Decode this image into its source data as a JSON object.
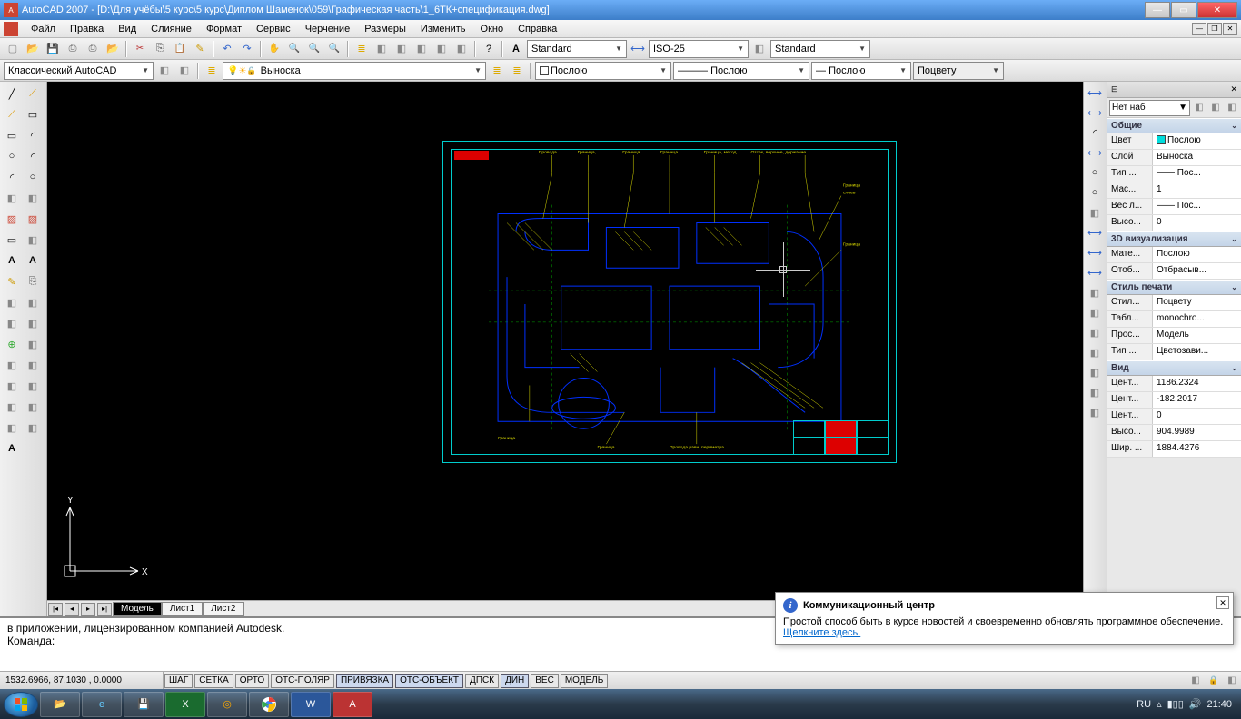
{
  "title": "AutoCAD 2007 - [D:\\Для учёбы\\5 курс\\5 курс\\Диплом Шаменок\\059\\Графическая часть\\1_6ТК+спецификация.dwg]",
  "menu": [
    "Файл",
    "Правка",
    "Вид",
    "Слияние",
    "Формат",
    "Сервис",
    "Черчение",
    "Размеры",
    "Изменить",
    "Окно",
    "Справка"
  ],
  "toolbar2": {
    "workspace": "Классический AutoCAD",
    "layer": "Выноска",
    "color": "Послою",
    "linetype": "Послою",
    "lineweight": "Послою",
    "plotstyle": "Поцвету",
    "textstyle": "Standard",
    "dimstyle": "ISO-25",
    "tablestyle": "Standard"
  },
  "tabs": {
    "active": "Модель",
    "others": [
      "Лист1",
      "Лист2"
    ]
  },
  "commandline": {
    "line1": "в приложении, лицензированном компанией Autodesk.",
    "prompt": "Команда:"
  },
  "status": {
    "coords": "1532.6966, 87.1030 , 0.0000",
    "toggles": [
      "ШАГ",
      "СЕТКА",
      "ОРТО",
      "ОТС-ПОЛЯР",
      "ПРИВЯЗКА",
      "ОТС-ОБЪЕКТ",
      "ДПСК",
      "ДИН",
      "ВЕС",
      "МОДЕЛЬ"
    ],
    "active_toggles": [
      4,
      5,
      7
    ]
  },
  "properties": {
    "selector": "Нет наб",
    "sections": [
      {
        "title": "Общие",
        "rows": [
          {
            "k": "Цвет",
            "v": "Послою",
            "color": "#00dddd"
          },
          {
            "k": "Слой",
            "v": "Выноска"
          },
          {
            "k": "Тип ...",
            "v": "—— Пос..."
          },
          {
            "k": "Мас...",
            "v": "1"
          },
          {
            "k": "Вес л...",
            "v": "—— Пос..."
          },
          {
            "k": "Высо...",
            "v": "0"
          }
        ]
      },
      {
        "title": "3D визуализация",
        "rows": [
          {
            "k": "Мате...",
            "v": "Послою"
          },
          {
            "k": "Отоб...",
            "v": "Отбрасыв..."
          }
        ]
      },
      {
        "title": "Стиль печати",
        "rows": [
          {
            "k": "Стил...",
            "v": "Поцвету"
          },
          {
            "k": "Табл...",
            "v": "monochro..."
          },
          {
            "k": "Прос...",
            "v": "Модель"
          },
          {
            "k": "Тип ...",
            "v": "Цветозави..."
          }
        ]
      },
      {
        "title": "Вид",
        "rows": [
          {
            "k": "Цент...",
            "v": "1186.2324"
          },
          {
            "k": "Цент...",
            "v": "-182.2017"
          },
          {
            "k": "Цент...",
            "v": "0"
          },
          {
            "k": "Высо...",
            "v": "904.9989"
          },
          {
            "k": "Шир. ...",
            "v": "1884.4276"
          }
        ]
      }
    ]
  },
  "popup": {
    "title": "Коммуникационный центр",
    "text": "Простой способ быть в курсе новостей и своевременно обновлять программное обеспечение.",
    "link": "Щелкните здесь."
  },
  "taskbar": {
    "lang": "RU",
    "time": "21:40"
  },
  "canvas": {
    "background": "#000000",
    "frame_color": "#00cccc",
    "drawing_color": "#0020ff",
    "annotation_color": "#dddd00",
    "hatch_color": "#00aa00",
    "highlight_color": "#dd0000"
  }
}
